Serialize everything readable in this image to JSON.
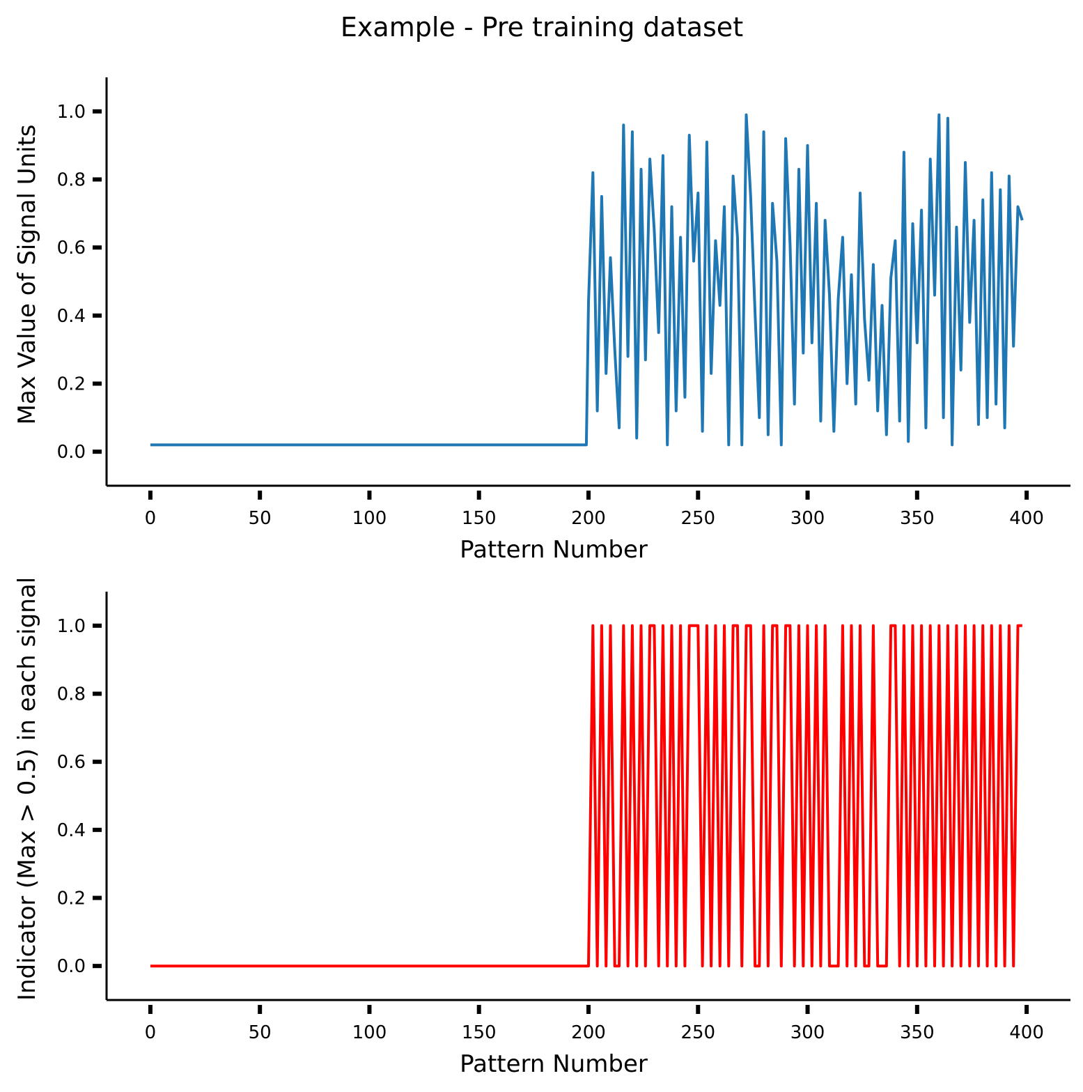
{
  "chart_data": [
    {
      "type": "line",
      "title": "Example - Pre training dataset",
      "xlabel": "Pattern Number",
      "ylabel": "Max Value of Signal Units",
      "color": "#1f77b4",
      "x": [
        0,
        10,
        20,
        30,
        40,
        50,
        60,
        70,
        80,
        90,
        100,
        110,
        120,
        130,
        140,
        150,
        160,
        170,
        180,
        190,
        199,
        200,
        202,
        204,
        206,
        208,
        210,
        212,
        214,
        216,
        218,
        220,
        222,
        224,
        226,
        228,
        230,
        232,
        234,
        236,
        238,
        240,
        242,
        244,
        246,
        248,
        250,
        252,
        254,
        256,
        258,
        260,
        262,
        264,
        266,
        268,
        270,
        272,
        274,
        276,
        278,
        280,
        282,
        284,
        286,
        288,
        290,
        292,
        294,
        296,
        298,
        300,
        302,
        304,
        306,
        308,
        310,
        312,
        314,
        316,
        318,
        320,
        322,
        324,
        326,
        328,
        330,
        332,
        334,
        336,
        338,
        340,
        342,
        344,
        346,
        348,
        350,
        352,
        354,
        356,
        358,
        360,
        362,
        364,
        366,
        368,
        370,
        372,
        374,
        376,
        378,
        380,
        382,
        384,
        386,
        388,
        390,
        392,
        394,
        396,
        398
      ],
      "values": [
        0.02,
        0.02,
        0.02,
        0.02,
        0.02,
        0.02,
        0.02,
        0.02,
        0.02,
        0.02,
        0.02,
        0.02,
        0.02,
        0.02,
        0.02,
        0.02,
        0.02,
        0.02,
        0.02,
        0.02,
        0.02,
        0.44,
        0.82,
        0.12,
        0.75,
        0.23,
        0.57,
        0.3,
        0.07,
        0.96,
        0.28,
        0.94,
        0.04,
        0.83,
        0.27,
        0.86,
        0.65,
        0.35,
        0.87,
        0.02,
        0.72,
        0.12,
        0.63,
        0.16,
        0.93,
        0.56,
        0.76,
        0.06,
        0.91,
        0.23,
        0.62,
        0.43,
        0.72,
        0.02,
        0.81,
        0.63,
        0.02,
        0.99,
        0.75,
        0.41,
        0.1,
        0.94,
        0.05,
        0.73,
        0.56,
        0.02,
        0.92,
        0.61,
        0.14,
        0.83,
        0.29,
        0.9,
        0.32,
        0.73,
        0.09,
        0.68,
        0.46,
        0.06,
        0.45,
        0.63,
        0.2,
        0.52,
        0.14,
        0.76,
        0.39,
        0.21,
        0.55,
        0.12,
        0.43,
        0.05,
        0.51,
        0.62,
        0.09,
        0.88,
        0.03,
        0.67,
        0.32,
        0.71,
        0.07,
        0.86,
        0.46,
        0.99,
        0.1,
        0.98,
        0.02,
        0.66,
        0.24,
        0.85,
        0.38,
        0.68,
        0.08,
        0.74,
        0.1,
        0.82,
        0.14,
        0.77,
        0.07,
        0.81,
        0.31,
        0.72,
        0.68
      ],
      "xlim": [
        -20,
        420
      ],
      "ylim": [
        -0.1,
        1.1
      ],
      "xticks": [
        0,
        50,
        100,
        150,
        200,
        250,
        300,
        350,
        400
      ],
      "yticks": [
        {
          "value": 0,
          "label": "0.0"
        },
        {
          "value": 0.2,
          "label": "0.2"
        },
        {
          "value": 0.4,
          "label": "0.4"
        },
        {
          "value": 0.6,
          "label": "0.6"
        },
        {
          "value": 0.8,
          "label": "0.8"
        },
        {
          "value": 1,
          "label": "1.0"
        }
      ]
    },
    {
      "type": "line",
      "xlabel": "Pattern Number",
      "ylabel": "Indicator (Max > 0.5) in each signal",
      "color": "#ff0000",
      "x": [
        0,
        10,
        20,
        30,
        40,
        50,
        60,
        70,
        80,
        90,
        100,
        110,
        120,
        130,
        140,
        150,
        160,
        170,
        180,
        190,
        199,
        200,
        202,
        204,
        206,
        208,
        210,
        212,
        214,
        216,
        218,
        220,
        222,
        224,
        226,
        228,
        230,
        232,
        234,
        236,
        238,
        240,
        242,
        244,
        246,
        248,
        250,
        252,
        254,
        256,
        258,
        260,
        262,
        264,
        266,
        268,
        270,
        272,
        274,
        276,
        278,
        280,
        282,
        284,
        286,
        288,
        290,
        292,
        294,
        296,
        298,
        300,
        302,
        304,
        306,
        308,
        310,
        312,
        314,
        316,
        318,
        320,
        322,
        324,
        326,
        328,
        330,
        332,
        334,
        336,
        338,
        340,
        342,
        344,
        346,
        348,
        350,
        352,
        354,
        356,
        358,
        360,
        362,
        364,
        366,
        368,
        370,
        372,
        374,
        376,
        378,
        380,
        382,
        384,
        386,
        388,
        390,
        392,
        394,
        396,
        398
      ],
      "values": [
        0,
        0,
        0,
        0,
        0,
        0,
        0,
        0,
        0,
        0,
        0,
        0,
        0,
        0,
        0,
        0,
        0,
        0,
        0,
        0,
        0,
        0,
        1,
        0,
        1,
        0,
        1,
        0,
        0,
        1,
        0,
        1,
        0,
        1,
        0,
        1,
        1,
        0,
        1,
        0,
        1,
        0,
        1,
        0,
        1,
        1,
        1,
        0,
        1,
        0,
        1,
        0,
        1,
        0,
        1,
        1,
        0,
        1,
        1,
        0,
        0,
        1,
        0,
        1,
        1,
        0,
        1,
        1,
        0,
        1,
        0,
        1,
        0,
        1,
        0,
        1,
        0,
        0,
        0,
        1,
        0,
        1,
        0,
        1,
        0,
        0,
        1,
        0,
        0,
        0,
        1,
        1,
        0,
        1,
        0,
        1,
        0,
        1,
        0,
        1,
        0,
        1,
        0,
        1,
        0,
        1,
        0,
        1,
        0,
        1,
        0,
        1,
        0,
        1,
        0,
        1,
        0,
        1,
        0,
        1,
        1
      ],
      "xlim": [
        -20,
        420
      ],
      "ylim": [
        -0.1,
        1.1
      ],
      "xticks": [
        0,
        50,
        100,
        150,
        200,
        250,
        300,
        350,
        400
      ],
      "yticks": [
        {
          "value": 0,
          "label": "0.0"
        },
        {
          "value": 0.2,
          "label": "0.2"
        },
        {
          "value": 0.4,
          "label": "0.4"
        },
        {
          "value": 0.6,
          "label": "0.6"
        },
        {
          "value": 0.8,
          "label": "0.8"
        },
        {
          "value": 1,
          "label": "1.0"
        }
      ]
    }
  ]
}
